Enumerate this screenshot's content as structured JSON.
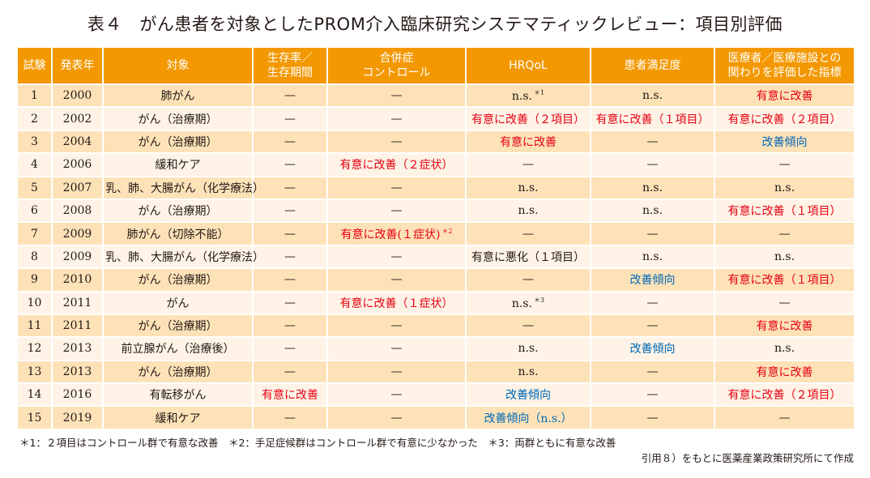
{
  "title": "表４　がん患者を対象としたPROM介入臨床研究システマティックレビュー：項目別評価",
  "colors": {
    "header_bg": "#f39800",
    "row_odd": "#fde2b8",
    "row_even": "#fef3e6",
    "significant_improvement": "#e60012",
    "improvement_trend": "#0068b7",
    "text": "#231815"
  },
  "table": {
    "headers": [
      "試験",
      "発表年",
      "対象",
      "生存率／\n生存期間",
      "合併症\nコントロール",
      "HRQoL",
      "患者満足度",
      "医療者／医療施設との\n関わりを評価した指標"
    ],
    "rows": [
      {
        "trial": "1",
        "year": "2000",
        "target": "肺がん",
        "survival": "—",
        "complication": "—",
        "hrqol": "n.s.",
        "hrqol_note": "＊1",
        "satisfaction": "n.s.",
        "provider": "有意に改善"
      },
      {
        "trial": "2",
        "year": "2002",
        "target": "がん（治療期）",
        "survival": "—",
        "complication": "—",
        "hrqol": "有意に改善（２項目）",
        "satisfaction": "有意に改善（１項目）",
        "provider": "有意に改善（２項目）"
      },
      {
        "trial": "3",
        "year": "2004",
        "target": "がん（治療期）",
        "survival": "—",
        "complication": "—",
        "hrqol": "有意に改善",
        "satisfaction": "—",
        "provider": "改善傾向"
      },
      {
        "trial": "4",
        "year": "2006",
        "target": "緩和ケア",
        "survival": "—",
        "complication": "有意に改善（２症状）",
        "hrqol": "—",
        "satisfaction": "—",
        "provider": "—"
      },
      {
        "trial": "5",
        "year": "2007",
        "target": "乳、肺、大腸がん（化学療法）",
        "survival": "—",
        "complication": "—",
        "hrqol": "n.s.",
        "satisfaction": "n.s.",
        "provider": "n.s."
      },
      {
        "trial": "6",
        "year": "2008",
        "target": "がん（治療期）",
        "survival": "—",
        "complication": "—",
        "hrqol": "n.s.",
        "satisfaction": "n.s.",
        "provider": "有意に改善（１項目）"
      },
      {
        "trial": "7",
        "year": "2009",
        "target": "肺がん（切除不能）",
        "survival": "—",
        "complication": "有意に改善(１症状)",
        "complication_note": "＊2",
        "hrqol": "—",
        "satisfaction": "—",
        "provider": "—"
      },
      {
        "trial": "8",
        "year": "2009",
        "target": "乳、肺、大腸がん（化学療法）",
        "survival": "—",
        "complication": "—",
        "hrqol": "有意に悪化（１項目）",
        "satisfaction": "n.s.",
        "provider": "n.s."
      },
      {
        "trial": "9",
        "year": "2010",
        "target": "がん（治療期）",
        "survival": "—",
        "complication": "—",
        "hrqol": "—",
        "satisfaction": "改善傾向",
        "provider": "有意に改善（１項目）"
      },
      {
        "trial": "10",
        "year": "2011",
        "target": "がん",
        "survival": "—",
        "complication": "有意に改善（１症状）",
        "hrqol": "n.s.",
        "hrqol_note": "＊3",
        "satisfaction": "—",
        "provider": "—"
      },
      {
        "trial": "11",
        "year": "2011",
        "target": "がん（治療期）",
        "survival": "—",
        "complication": "—",
        "hrqol": "—",
        "satisfaction": "—",
        "provider": "有意に改善"
      },
      {
        "trial": "12",
        "year": "2013",
        "target": "前立腺がん（治療後）",
        "survival": "—",
        "complication": "—",
        "hrqol": "n.s.",
        "satisfaction": "改善傾向",
        "provider": "n.s."
      },
      {
        "trial": "13",
        "year": "2013",
        "target": "がん（治療期）",
        "survival": "—",
        "complication": "—",
        "hrqol": "n.s.",
        "satisfaction": "—",
        "provider": "有意に改善"
      },
      {
        "trial": "14",
        "year": "2016",
        "target": "有転移がん",
        "survival": "有意に改善",
        "complication": "—",
        "hrqol": "改善傾向",
        "satisfaction": "—",
        "provider": "有意に改善（２項目）"
      },
      {
        "trial": "15",
        "year": "2019",
        "target": "緩和ケア",
        "survival": "—",
        "complication": "—",
        "hrqol": "改善傾向（n.s.）",
        "satisfaction": "—",
        "provider": "—"
      }
    ]
  },
  "footnote": "＊1：２項目はコントロール群で有意な改善　＊2：手足症候群はコントロール群で有意に少なかった　＊3：両群ともに有意な改善",
  "source": "引用８）をもとに医薬産業政策研究所にて作成"
}
